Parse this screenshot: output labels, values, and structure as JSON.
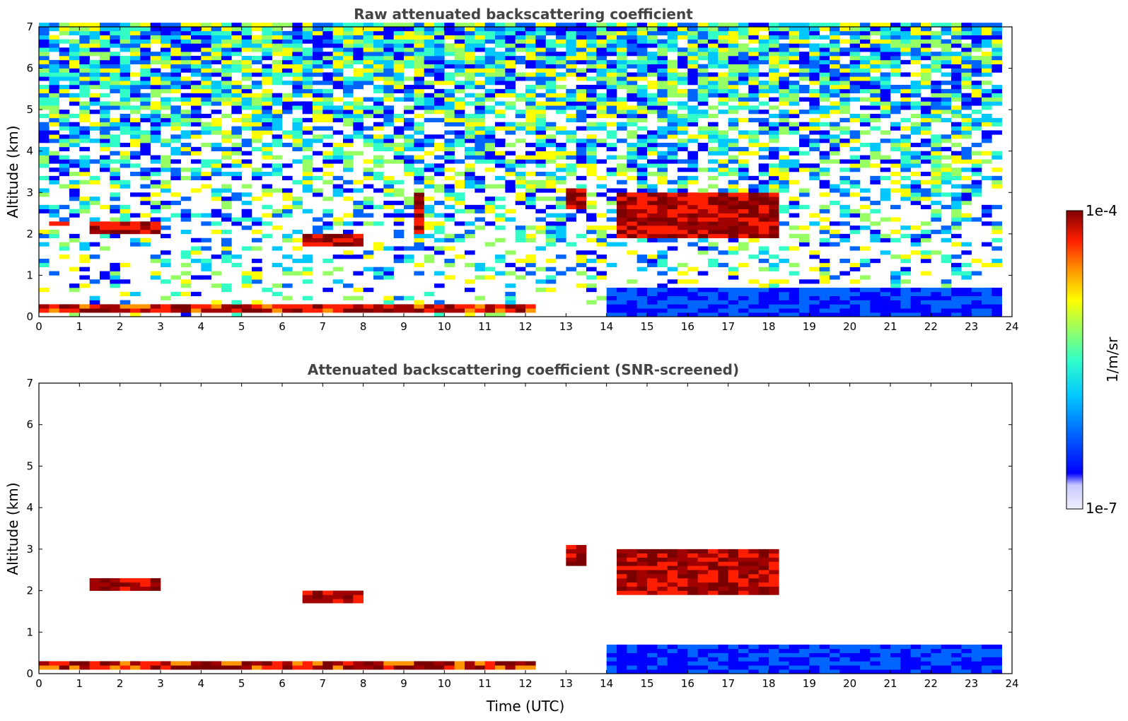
{
  "chart_data": [
    {
      "type": "heatmap",
      "title": "Raw attenuated backscattering coefficient",
      "xlabel": "",
      "ylabel": "Altitude (km)",
      "xlim": [
        0,
        24
      ],
      "ylim": [
        0,
        7
      ],
      "xticks": [
        "0",
        "1",
        "2",
        "3",
        "4",
        "5",
        "6",
        "7",
        "8",
        "9",
        "10",
        "11",
        "12",
        "13",
        "14",
        "15",
        "16",
        "17",
        "18",
        "19",
        "20",
        "21",
        "22",
        "23",
        "24"
      ],
      "yticks": [
        "0",
        "1",
        "2",
        "3",
        "4",
        "5",
        "6",
        "7"
      ],
      "data_extent_x": [
        0,
        23.65
      ],
      "screened": false,
      "features": [
        {
          "kind": "surface_layer",
          "x": [
            0,
            12.3
          ],
          "y": [
            0.1,
            0.3
          ]
        },
        {
          "kind": "cloud",
          "x": [
            1.3,
            3.1
          ],
          "y": [
            2.0,
            2.3
          ]
        },
        {
          "kind": "cloud",
          "x": [
            0.2,
            0.8
          ],
          "y": [
            2.2,
            2.3
          ]
        },
        {
          "kind": "cloud",
          "x": [
            6.5,
            8.0
          ],
          "y": [
            1.7,
            2.0
          ]
        },
        {
          "kind": "cloud",
          "x": [
            9.2,
            9.5
          ],
          "y": [
            2.0,
            3.0
          ]
        },
        {
          "kind": "cloud",
          "x": [
            13.0,
            13.6
          ],
          "y": [
            2.6,
            3.1
          ]
        },
        {
          "kind": "cloud",
          "x": [
            14.2,
            18.3
          ],
          "y": [
            1.9,
            3.0
          ]
        },
        {
          "kind": "boundary_layer",
          "x": [
            14.0,
            23.65
          ],
          "y": [
            0.0,
            0.7
          ]
        }
      ]
    },
    {
      "type": "heatmap",
      "title": "Attenuated backscattering coefficient (SNR-screened)",
      "xlabel": "Time (UTC)",
      "ylabel": "Altitude (km)",
      "xlim": [
        0,
        24
      ],
      "ylim": [
        0,
        7
      ],
      "xticks": [
        "0",
        "1",
        "2",
        "3",
        "4",
        "5",
        "6",
        "7",
        "8",
        "9",
        "10",
        "11",
        "12",
        "13",
        "14",
        "15",
        "16",
        "17",
        "18",
        "19",
        "20",
        "21",
        "22",
        "23",
        "24"
      ],
      "yticks": [
        "0",
        "1",
        "2",
        "3",
        "4",
        "5",
        "6",
        "7"
      ],
      "data_extent_x": [
        0,
        23.65
      ],
      "screened": true,
      "features": [
        {
          "kind": "surface_layer",
          "x": [
            0,
            12.3
          ],
          "y": [
            0.1,
            0.3
          ]
        },
        {
          "kind": "cloud",
          "x": [
            1.3,
            3.1
          ],
          "y": [
            2.0,
            2.3
          ]
        },
        {
          "kind": "cloud",
          "x": [
            6.5,
            8.0
          ],
          "y": [
            1.7,
            2.0
          ]
        },
        {
          "kind": "cloud",
          "x": [
            13.0,
            13.6
          ],
          "y": [
            2.6,
            3.1
          ]
        },
        {
          "kind": "cloud",
          "x": [
            14.2,
            18.3
          ],
          "y": [
            1.9,
            3.0
          ]
        },
        {
          "kind": "boundary_layer",
          "x": [
            14.0,
            23.65
          ],
          "y": [
            0.0,
            0.7
          ]
        }
      ]
    }
  ],
  "colorbar": {
    "label": "1/m/sr",
    "max_label": "1e-4",
    "min_label": "1e-7",
    "scale": "log",
    "range": [
      "1e-7",
      "1e-4"
    ],
    "colormap": "jet",
    "colors": [
      "#f0f0ff",
      "#c8c8ff",
      "#0000ff",
      "#0064ff",
      "#00c8ff",
      "#32ffc8",
      "#96ff64",
      "#ffff00",
      "#ff9600",
      "#ff1e00",
      "#a00000",
      "#7a0000"
    ]
  }
}
